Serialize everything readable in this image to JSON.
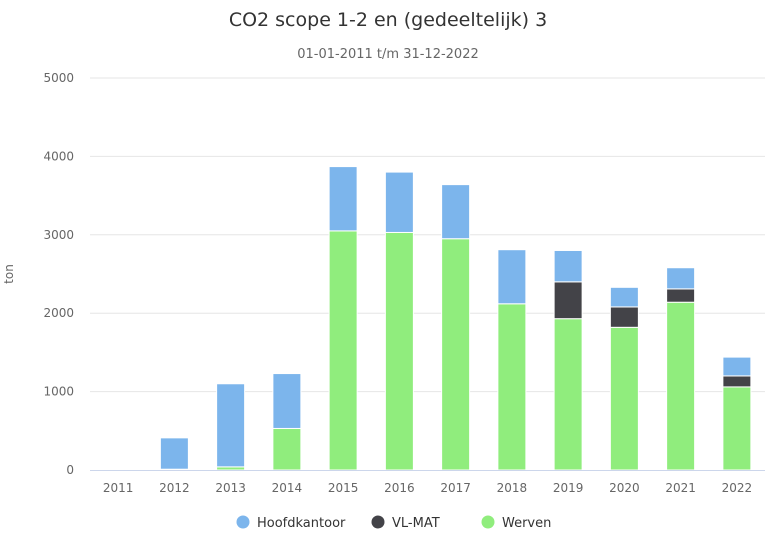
{
  "chart_data": {
    "type": "bar",
    "stacked": true,
    "title": "CO2 scope 1-2 en (gedeeltelijk) 3",
    "subtitle": "01-01-2011 t/m 31-12-2022",
    "xlabel": "",
    "ylabel": "ton",
    "ylim": [
      0,
      5000
    ],
    "yticks": [
      "0",
      "1000",
      "2000",
      "3000",
      "4000",
      "5000"
    ],
    "grid": true,
    "legend_position": "bottom",
    "categories": [
      "2011",
      "2012",
      "2013",
      "2014",
      "2015",
      "2016",
      "2017",
      "2018",
      "2019",
      "2020",
      "2021",
      "2022"
    ],
    "series": [
      {
        "name": "Werven",
        "color": "#90ed7d",
        "values": [
          0,
          10,
          40,
          530,
          3050,
          3030,
          2950,
          2120,
          1930,
          1820,
          2140,
          1060
        ]
      },
      {
        "name": "VL-MAT",
        "color": "#434348",
        "values": [
          0,
          0,
          0,
          0,
          0,
          0,
          0,
          0,
          470,
          260,
          170,
          140
        ]
      },
      {
        "name": "Hoofdkantoor",
        "color": "#7cb5ec",
        "values": [
          0,
          400,
          1060,
          700,
          820,
          770,
          690,
          690,
          400,
          250,
          270,
          240
        ]
      }
    ],
    "legend": [
      {
        "name": "Hoofdkantoor",
        "color": "#7cb5ec",
        "icon": "circle-icon"
      },
      {
        "name": "VL-MAT",
        "color": "#434348",
        "icon": "circle-icon"
      },
      {
        "name": "Werven",
        "color": "#90ed7d",
        "icon": "circle-icon"
      }
    ]
  }
}
